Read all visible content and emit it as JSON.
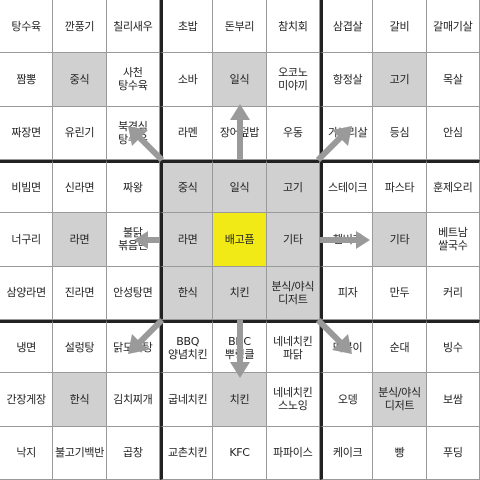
{
  "board": {
    "blocks": [
      [
        "탕수육",
        "깐풍기",
        "칠리새우",
        "짬뽕",
        "중식",
        "사천\n탕수육",
        "짜장면",
        "유린기",
        "북경식\n탕수육"
      ],
      [
        "초밥",
        "돈부리",
        "참치회",
        "소바",
        "일식",
        "오코노\n미야끼",
        "라멘",
        "장어덮밥",
        "우동"
      ],
      [
        "삼겹살",
        "갈비",
        "갈매기살",
        "항정살",
        "고기",
        "목살",
        "가브리살",
        "등심",
        "안심"
      ],
      [
        "비빔면",
        "신라면",
        "짜왕",
        "너구리",
        "라면",
        "불닭\n볶음면",
        "삼양라면",
        "진라면",
        "안성탕면"
      ],
      [
        "중식",
        "일식",
        "고기",
        "라면",
        "배고픔",
        "기타",
        "한식",
        "치킨",
        "분식/야식\n디저트"
      ],
      [
        "스테이크",
        "파스타",
        "훈제오리",
        "햄버거",
        "기타",
        "베트남\n쌀국수",
        "피자",
        "만두",
        "커리"
      ],
      [
        "냉면",
        "설렁탕",
        "닭도리탕",
        "간장게장",
        "한식",
        "김치찌개",
        "낙지",
        "불고기백반",
        "곱창"
      ],
      [
        "BBQ\n양념치킨",
        "BHC\n뿌링클",
        "네네치킨\n파닭",
        "굽네치킨",
        "치킨",
        "네네치킨\n스노잉",
        "교촌치킨",
        "KFC",
        "파파이스"
      ],
      [
        "떡볶이",
        "순대",
        "빙수",
        "오뎅",
        "분식/야식\n디저트",
        "보쌈",
        "케이크",
        "빵",
        "푸딩"
      ]
    ]
  },
  "colors": {
    "category_fill": "#d0d0d0",
    "center_fill": "#f2ea17",
    "grid_line": "#9a9a9a",
    "block_border": "#222222",
    "arrow": "#9a9a9a"
  }
}
